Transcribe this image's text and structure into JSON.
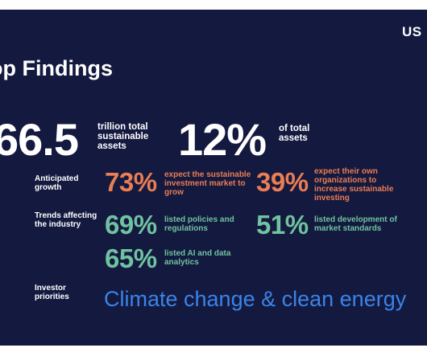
{
  "logo": "US",
  "title": "op Findings",
  "headline_stats": [
    {
      "value": "66.5",
      "caption": "trillion total sustainable assets"
    },
    {
      "value": "12%",
      "caption": "of total assets"
    }
  ],
  "rows": [
    {
      "label": "Anticipated growth",
      "stats": [
        {
          "value": "73%",
          "text": "expect the sustainable investment market to grow",
          "color": "#ea7d53"
        },
        {
          "value": "39%",
          "text": "expect their own organizations to increase sustainable investing",
          "color": "#ea7d53"
        }
      ]
    },
    {
      "label": "Trends affecting the industry",
      "stats": [
        {
          "value": "69%",
          "text": "listed policies and regulations",
          "color": "#6fc3a0"
        },
        {
          "value": "51%",
          "text": "listed development of market standards",
          "color": "#6fc3a0"
        },
        {
          "value": "65%",
          "text": "listed AI and data analytics",
          "color": "#6fc3a0"
        }
      ]
    },
    {
      "label": "Investor priorities",
      "priority": "Climate change & clean energy",
      "color": "#3b83e8"
    }
  ],
  "colors": {
    "background": "#14193f",
    "orange": "#ea7d53",
    "green": "#6fc3a0",
    "blue": "#3b83e8"
  }
}
